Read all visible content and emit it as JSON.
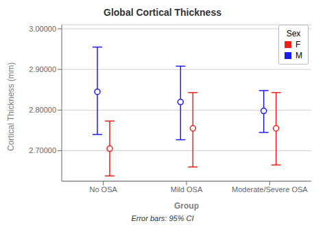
{
  "chart_data": {
    "type": "scatter",
    "title": "Global Cortical Thickness",
    "xlabel": "Group",
    "ylabel": "Cortical Thickness (mm)",
    "annotations": [
      "Error bars: 95% CI"
    ],
    "categories": [
      "No OSA",
      "Mild OSA",
      "Moderate/Severe OSA"
    ],
    "series": [
      {
        "name": "F",
        "color": "#e8221a",
        "values": [
          2.705,
          2.755,
          2.755
        ],
        "ci_lower": [
          2.638,
          2.66,
          2.665
        ],
        "ci_upper": [
          2.773,
          2.843,
          2.843
        ]
      },
      {
        "name": "M",
        "color": "#1a1aee",
        "values": [
          2.845,
          2.82,
          2.798
        ],
        "ci_lower": [
          2.74,
          2.727,
          2.745
        ],
        "ci_upper": [
          2.955,
          2.908,
          2.848
        ]
      }
    ],
    "marker": "o",
    "ylim": [
      2.625,
      3.01
    ],
    "yticks": [
      {
        "value": 2.7,
        "label": "2.70000"
      },
      {
        "value": 2.8,
        "label": "2.80000"
      },
      {
        "value": 2.9,
        "label": "2.90000"
      },
      {
        "value": 3.0,
        "label": "3.00000"
      }
    ],
    "grid": true,
    "legend": "upper right",
    "legend_title": "Sex"
  }
}
